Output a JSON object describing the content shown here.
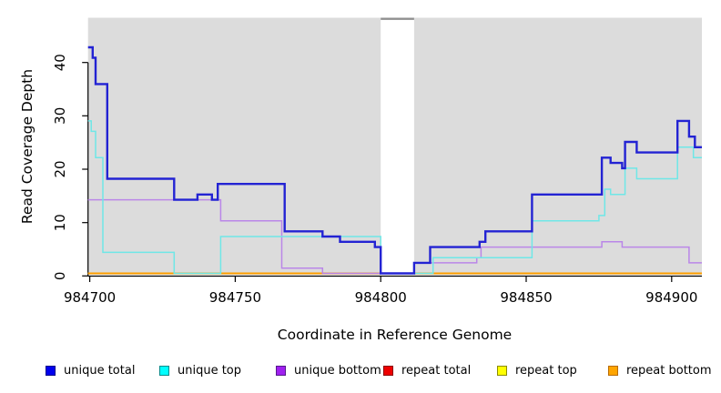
{
  "figure": {
    "x_axis_label": "Coordinate in Reference Genome",
    "y_axis_label": "Read Coverage Depth"
  },
  "chart_data": {
    "type": "line",
    "subtype": "step",
    "title": "",
    "xlabel": "Coordinate in Reference Genome",
    "ylabel": "Read Coverage Depth",
    "xlim": [
      984699.4,
      984910.4
    ],
    "ylim": [
      0,
      48
    ],
    "x_ticks": [
      984700,
      984750,
      984800,
      984850,
      984900
    ],
    "y_ticks": [
      0,
      10,
      20,
      30,
      40
    ],
    "grid": false,
    "plot_bg_color": "#DCDCDC",
    "background_regions": [
      [
        984699.4,
        984800.0
      ],
      [
        984811.5,
        984910.4
      ]
    ],
    "gap_region": [
      984800.0,
      984811.5
    ],
    "gap_marker_color": "#8f8f8f",
    "legend_position": "bottom",
    "draw_order": [
      3,
      4,
      5,
      2,
      1,
      0
    ],
    "series": [
      {
        "name": "unique total",
        "color": "#2323D3",
        "legend_fill": "#0000EE",
        "legend_border": "#00008B",
        "width": 2.4,
        "points": [
          [
            984699.4,
            43
          ],
          [
            984701,
            41
          ],
          [
            984702,
            36
          ],
          [
            984706,
            18
          ],
          [
            984729,
            14
          ],
          [
            984737,
            15
          ],
          [
            984742,
            14
          ],
          [
            984744,
            17
          ],
          [
            984767,
            8
          ],
          [
            984780,
            7
          ],
          [
            984786,
            6
          ],
          [
            984798,
            5
          ],
          [
            984800,
            0
          ],
          [
            984811.5,
            2
          ],
          [
            984817,
            5
          ],
          [
            984834,
            6
          ],
          [
            984836,
            8
          ],
          [
            984852,
            15
          ],
          [
            984876,
            22
          ],
          [
            984879,
            21
          ],
          [
            984883,
            20
          ],
          [
            984884,
            25
          ],
          [
            984888,
            23
          ],
          [
            984902,
            29
          ],
          [
            984906,
            26
          ],
          [
            984908,
            24
          ],
          [
            984910.4,
            24
          ]
        ]
      },
      {
        "name": "unique top",
        "color": "#6FE7E7",
        "legend_fill": "#00FFFF",
        "legend_border": "#008B8B",
        "width": 1.5,
        "points": [
          [
            984699.4,
            29
          ],
          [
            984700.5,
            27
          ],
          [
            984702,
            22
          ],
          [
            984704.5,
            4
          ],
          [
            984729,
            0
          ],
          [
            984745,
            7
          ],
          [
            984800,
            0
          ],
          [
            984818,
            3
          ],
          [
            984852,
            10
          ],
          [
            984875,
            11
          ],
          [
            984877,
            16
          ],
          [
            984879,
            15
          ],
          [
            984884,
            20
          ],
          [
            984888,
            18
          ],
          [
            984902,
            24
          ],
          [
            984907.5,
            22
          ],
          [
            984910.4,
            22
          ]
        ]
      },
      {
        "name": "unique bottom",
        "color": "#BA86E8",
        "legend_fill": "#A020F0",
        "legend_border": "#551A8B",
        "width": 1.5,
        "points": [
          [
            984699.4,
            14
          ],
          [
            984745,
            10
          ],
          [
            984766,
            1
          ],
          [
            984780,
            0
          ],
          [
            984811.5,
            2
          ],
          [
            984833,
            3
          ],
          [
            984834.5,
            5
          ],
          [
            984876,
            6
          ],
          [
            984883,
            5
          ],
          [
            984906,
            2
          ],
          [
            984910.4,
            2
          ]
        ]
      },
      {
        "name": "repeat total",
        "color": "#CD4166",
        "legend_fill": "#EE0000",
        "legend_border": "#8B0000",
        "width": 1.5,
        "points": [
          [
            984699.4,
            0
          ],
          [
            984910.4,
            0
          ]
        ]
      },
      {
        "name": "repeat top",
        "color": "#EDED2A",
        "legend_fill": "#FFFF00",
        "legend_border": "#8B8B00",
        "width": 1.5,
        "points": [
          [
            984699.4,
            0
          ],
          [
            984910.4,
            0
          ]
        ]
      },
      {
        "name": "repeat bottom",
        "color": "#FF9F00",
        "legend_fill": "#FFA500",
        "legend_border": "#B86B00",
        "width": 2,
        "points": [
          [
            984699.4,
            0
          ],
          [
            984910.4,
            0
          ]
        ]
      }
    ]
  }
}
